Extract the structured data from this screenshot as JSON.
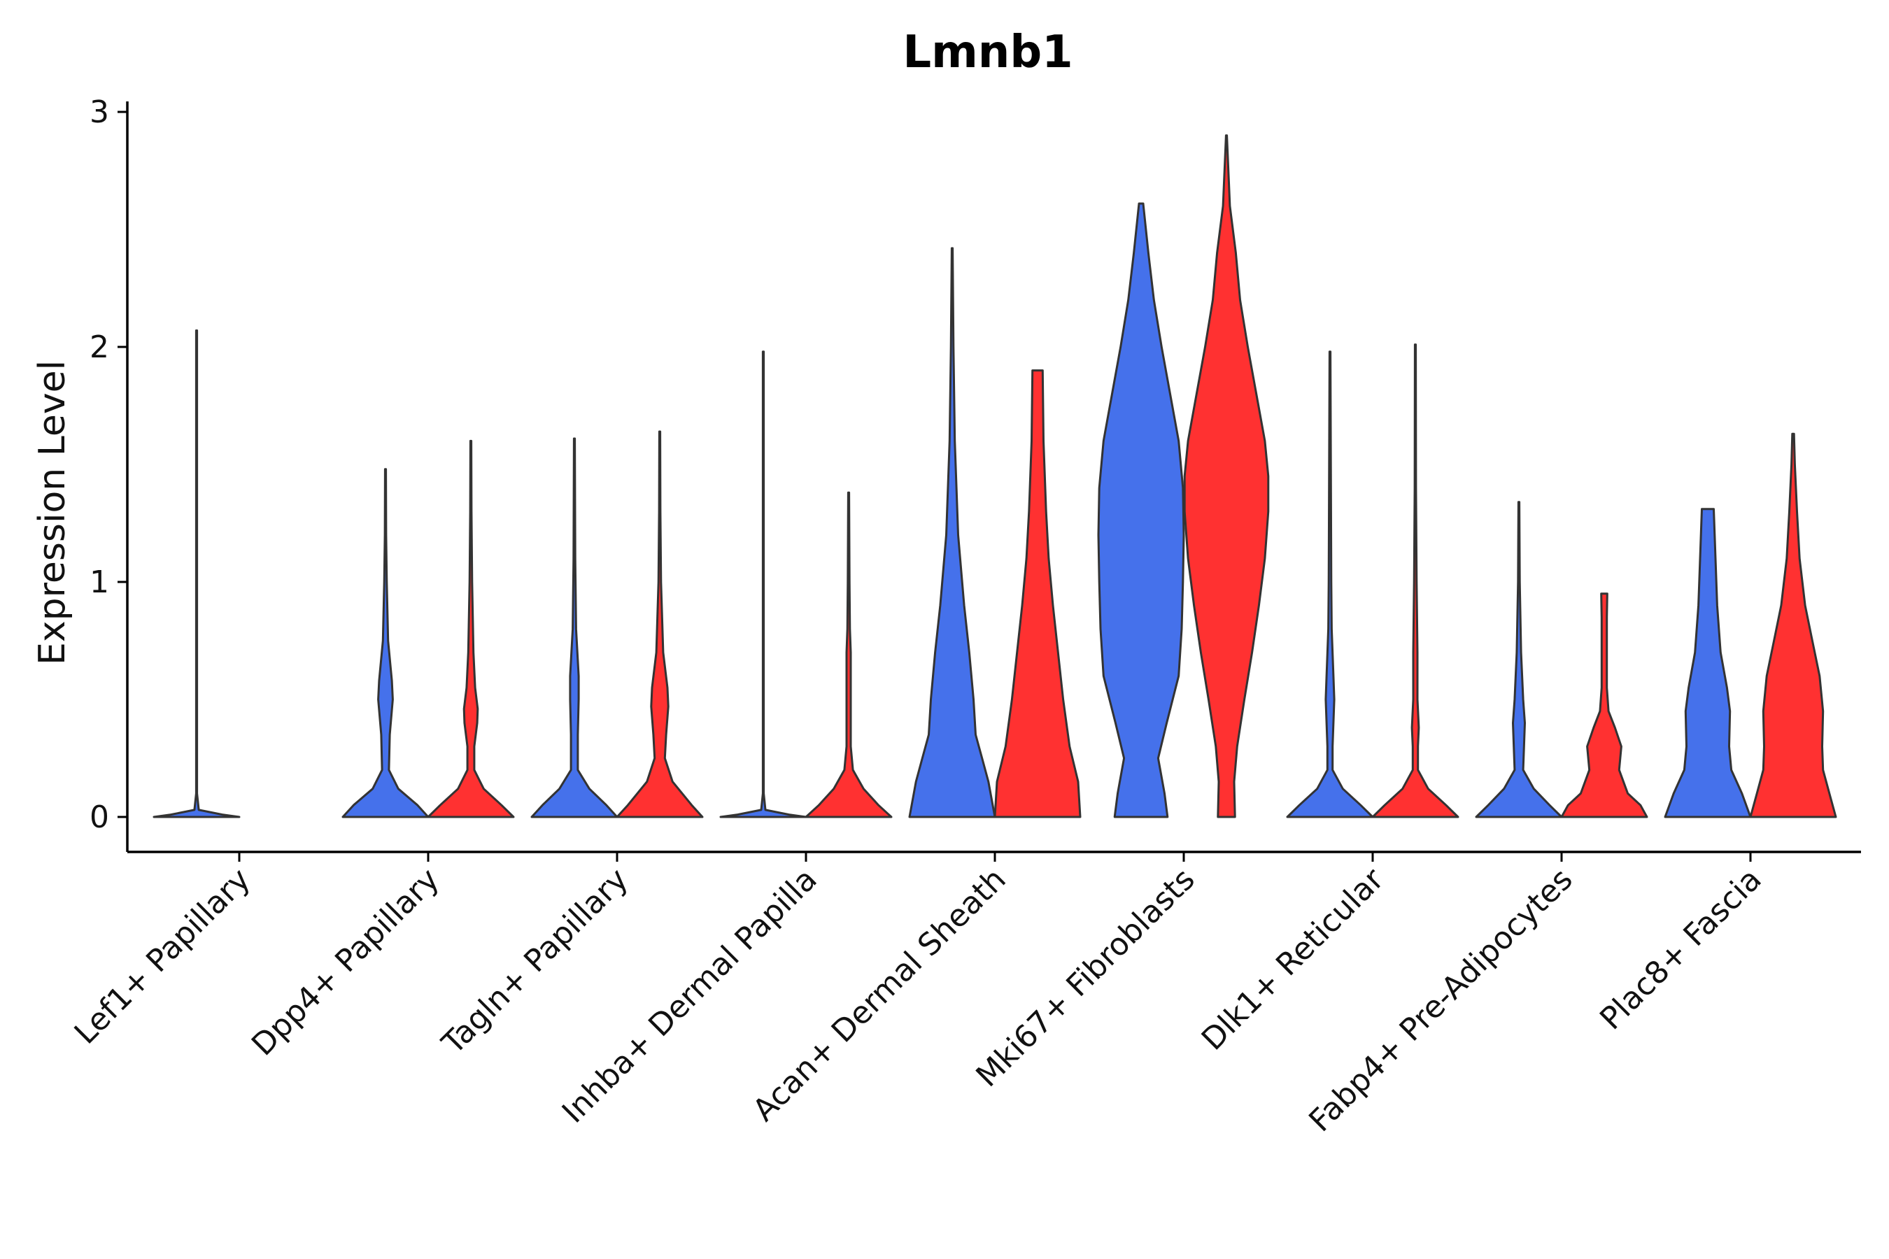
{
  "chart_data": {
    "type": "violin",
    "title": "Lmnb1",
    "xlabel": "",
    "ylabel": "Expression Level",
    "ylim": [
      -0.15,
      3.05
    ],
    "yticks": [
      0,
      1,
      2,
      3
    ],
    "groups": [
      "blue",
      "red"
    ],
    "colors": {
      "blue": "#4571EB",
      "red": "#FF3131"
    },
    "categories": [
      "Lef1+ Papillary",
      "Dpp4+ Papillary",
      "Tagln+ Papillary",
      "Inhba+ Dermal Papilla",
      "Acan+ Dermal Sheath",
      "Mki67+ Fibroblasts",
      "Dlk1+ Reticular",
      "Fabp4+ Pre-Adipocytes",
      "Plac8+ Fascia"
    ],
    "violins": [
      {
        "category": "Lef1+ Papillary",
        "group": "blue",
        "max": 2.07,
        "profile": [
          [
            0,
            1.0
          ],
          [
            0.01,
            0.6
          ],
          [
            0.03,
            0.05
          ],
          [
            0.1,
            0.01
          ],
          [
            2.07,
            0.01
          ]
        ]
      },
      {
        "category": "Lef1+ Papillary",
        "group": "red",
        "max": 0,
        "profile": []
      },
      {
        "category": "Dpp4+ Papillary",
        "group": "blue",
        "max": 1.48,
        "profile": [
          [
            0,
            1.0
          ],
          [
            0.05,
            0.75
          ],
          [
            0.12,
            0.3
          ],
          [
            0.2,
            0.08
          ],
          [
            0.35,
            0.1
          ],
          [
            0.5,
            0.17
          ],
          [
            0.58,
            0.15
          ],
          [
            0.75,
            0.06
          ],
          [
            1.0,
            0.03
          ],
          [
            1.2,
            0.015
          ],
          [
            1.48,
            0.01
          ]
        ]
      },
      {
        "category": "Dpp4+ Papillary",
        "group": "red",
        "max": 1.6,
        "profile": [
          [
            0,
            1.0
          ],
          [
            0.05,
            0.72
          ],
          [
            0.12,
            0.3
          ],
          [
            0.2,
            0.08
          ],
          [
            0.3,
            0.08
          ],
          [
            0.4,
            0.15
          ],
          [
            0.46,
            0.16
          ],
          [
            0.55,
            0.1
          ],
          [
            0.7,
            0.06
          ],
          [
            1.0,
            0.03
          ],
          [
            1.3,
            0.015
          ],
          [
            1.6,
            0.01
          ]
        ]
      },
      {
        "category": "Tagln+ Papillary",
        "group": "blue",
        "max": 1.61,
        "profile": [
          [
            0,
            1.0
          ],
          [
            0.05,
            0.75
          ],
          [
            0.12,
            0.35
          ],
          [
            0.2,
            0.08
          ],
          [
            0.35,
            0.08
          ],
          [
            0.5,
            0.1
          ],
          [
            0.6,
            0.1
          ],
          [
            0.8,
            0.04
          ],
          [
            1.1,
            0.02
          ],
          [
            1.61,
            0.01
          ]
        ]
      },
      {
        "category": "Tagln+ Papillary",
        "group": "red",
        "max": 1.64,
        "profile": [
          [
            0,
            1.0
          ],
          [
            0.05,
            0.75
          ],
          [
            0.15,
            0.3
          ],
          [
            0.25,
            0.12
          ],
          [
            0.35,
            0.15
          ],
          [
            0.47,
            0.2
          ],
          [
            0.55,
            0.18
          ],
          [
            0.7,
            0.08
          ],
          [
            1.0,
            0.03
          ],
          [
            1.3,
            0.015
          ],
          [
            1.64,
            0.01
          ]
        ]
      },
      {
        "category": "Inhba+ Dermal Papilla",
        "group": "blue",
        "max": 1.98,
        "profile": [
          [
            0,
            1.0
          ],
          [
            0.01,
            0.6
          ],
          [
            0.03,
            0.05
          ],
          [
            0.1,
            0.01
          ],
          [
            1.98,
            0.01
          ]
        ]
      },
      {
        "category": "Inhba+ Dermal Papilla",
        "group": "red",
        "max": 1.38,
        "profile": [
          [
            0,
            1.0
          ],
          [
            0.05,
            0.7
          ],
          [
            0.12,
            0.35
          ],
          [
            0.2,
            0.1
          ],
          [
            0.3,
            0.05
          ],
          [
            0.5,
            0.05
          ],
          [
            0.7,
            0.05
          ],
          [
            0.8,
            0.03
          ],
          [
            1.0,
            0.02
          ],
          [
            1.38,
            0.01
          ]
        ]
      },
      {
        "category": "Acan+ Dermal Sheath",
        "group": "blue",
        "max": 2.42,
        "profile": [
          [
            0,
            1.0
          ],
          [
            0.15,
            0.85
          ],
          [
            0.25,
            0.7
          ],
          [
            0.35,
            0.55
          ],
          [
            0.5,
            0.5
          ],
          [
            0.7,
            0.4
          ],
          [
            0.9,
            0.28
          ],
          [
            1.2,
            0.14
          ],
          [
            1.6,
            0.06
          ],
          [
            2.0,
            0.03
          ],
          [
            2.42,
            0.01
          ]
        ]
      },
      {
        "category": "Acan+ Dermal Sheath",
        "group": "red",
        "max": 1.9,
        "profile": [
          [
            0,
            1.0
          ],
          [
            0.15,
            0.95
          ],
          [
            0.3,
            0.75
          ],
          [
            0.5,
            0.6
          ],
          [
            0.7,
            0.48
          ],
          [
            0.9,
            0.36
          ],
          [
            1.1,
            0.26
          ],
          [
            1.3,
            0.2
          ],
          [
            1.6,
            0.14
          ],
          [
            1.9,
            0.12
          ]
        ]
      },
      {
        "category": "Mki67+ Fibroblasts",
        "group": "blue",
        "max": 2.61,
        "profile": [
          [
            0,
            0.62
          ],
          [
            0.1,
            0.55
          ],
          [
            0.25,
            0.4
          ],
          [
            0.4,
            0.6
          ],
          [
            0.6,
            0.88
          ],
          [
            0.8,
            0.95
          ],
          [
            1.0,
            0.98
          ],
          [
            1.2,
            1.0
          ],
          [
            1.4,
            0.98
          ],
          [
            1.6,
            0.88
          ],
          [
            1.8,
            0.68
          ],
          [
            2.0,
            0.48
          ],
          [
            2.2,
            0.3
          ],
          [
            2.4,
            0.17
          ],
          [
            2.61,
            0.05
          ]
        ]
      },
      {
        "category": "Mki67+ Fibroblasts",
        "group": "red",
        "max": 2.9,
        "profile": [
          [
            0,
            0.2
          ],
          [
            0.15,
            0.18
          ],
          [
            0.3,
            0.25
          ],
          [
            0.5,
            0.42
          ],
          [
            0.7,
            0.6
          ],
          [
            0.9,
            0.76
          ],
          [
            1.1,
            0.9
          ],
          [
            1.3,
            0.98
          ],
          [
            1.45,
            0.98
          ],
          [
            1.6,
            0.9
          ],
          [
            1.8,
            0.7
          ],
          [
            2.0,
            0.5
          ],
          [
            2.2,
            0.32
          ],
          [
            2.4,
            0.22
          ],
          [
            2.6,
            0.08
          ],
          [
            2.9,
            0.01
          ]
        ]
      },
      {
        "category": "Dlk1+ Reticular",
        "group": "blue",
        "max": 1.98,
        "profile": [
          [
            0,
            1.0
          ],
          [
            0.05,
            0.72
          ],
          [
            0.12,
            0.3
          ],
          [
            0.2,
            0.06
          ],
          [
            0.3,
            0.06
          ],
          [
            0.5,
            0.1
          ],
          [
            0.6,
            0.08
          ],
          [
            0.8,
            0.04
          ],
          [
            1.0,
            0.03
          ],
          [
            1.98,
            0.01
          ]
        ]
      },
      {
        "category": "Dlk1+ Reticular",
        "group": "red",
        "max": 2.01,
        "profile": [
          [
            0,
            1.0
          ],
          [
            0.05,
            0.72
          ],
          [
            0.12,
            0.3
          ],
          [
            0.2,
            0.06
          ],
          [
            0.3,
            0.06
          ],
          [
            0.38,
            0.08
          ],
          [
            0.5,
            0.05
          ],
          [
            0.7,
            0.05
          ],
          [
            1.0,
            0.03
          ],
          [
            1.4,
            0.015
          ],
          [
            2.01,
            0.01
          ]
        ]
      },
      {
        "category": "Fabp4+ Pre-Adipocytes",
        "group": "blue",
        "max": 1.34,
        "profile": [
          [
            0,
            1.0
          ],
          [
            0.05,
            0.72
          ],
          [
            0.12,
            0.35
          ],
          [
            0.2,
            0.1
          ],
          [
            0.3,
            0.12
          ],
          [
            0.4,
            0.14
          ],
          [
            0.5,
            0.1
          ],
          [
            0.7,
            0.05
          ],
          [
            1.0,
            0.02
          ],
          [
            1.34,
            0.01
          ]
        ]
      },
      {
        "category": "Fabp4+ Pre-Adipocytes",
        "group": "red",
        "max": 0.95,
        "profile": [
          [
            0,
            1.0
          ],
          [
            0.05,
            0.85
          ],
          [
            0.1,
            0.55
          ],
          [
            0.2,
            0.35
          ],
          [
            0.3,
            0.4
          ],
          [
            0.38,
            0.25
          ],
          [
            0.45,
            0.1
          ],
          [
            0.55,
            0.06
          ],
          [
            0.7,
            0.06
          ],
          [
            0.85,
            0.06
          ],
          [
            0.95,
            0.07
          ]
        ]
      },
      {
        "category": "Plac8+ Fascia",
        "group": "blue",
        "max": 1.31,
        "profile": [
          [
            0,
            1.0
          ],
          [
            0.1,
            0.8
          ],
          [
            0.2,
            0.55
          ],
          [
            0.3,
            0.5
          ],
          [
            0.45,
            0.52
          ],
          [
            0.55,
            0.45
          ],
          [
            0.7,
            0.3
          ],
          [
            0.9,
            0.22
          ],
          [
            1.1,
            0.18
          ],
          [
            1.31,
            0.14
          ]
        ]
      },
      {
        "category": "Plac8+ Fascia",
        "group": "red",
        "max": 1.63,
        "profile": [
          [
            0,
            1.0
          ],
          [
            0.1,
            0.85
          ],
          [
            0.2,
            0.7
          ],
          [
            0.3,
            0.68
          ],
          [
            0.45,
            0.7
          ],
          [
            0.6,
            0.62
          ],
          [
            0.75,
            0.45
          ],
          [
            0.9,
            0.28
          ],
          [
            1.1,
            0.15
          ],
          [
            1.3,
            0.09
          ],
          [
            1.5,
            0.04
          ],
          [
            1.63,
            0.02
          ]
        ]
      }
    ]
  }
}
